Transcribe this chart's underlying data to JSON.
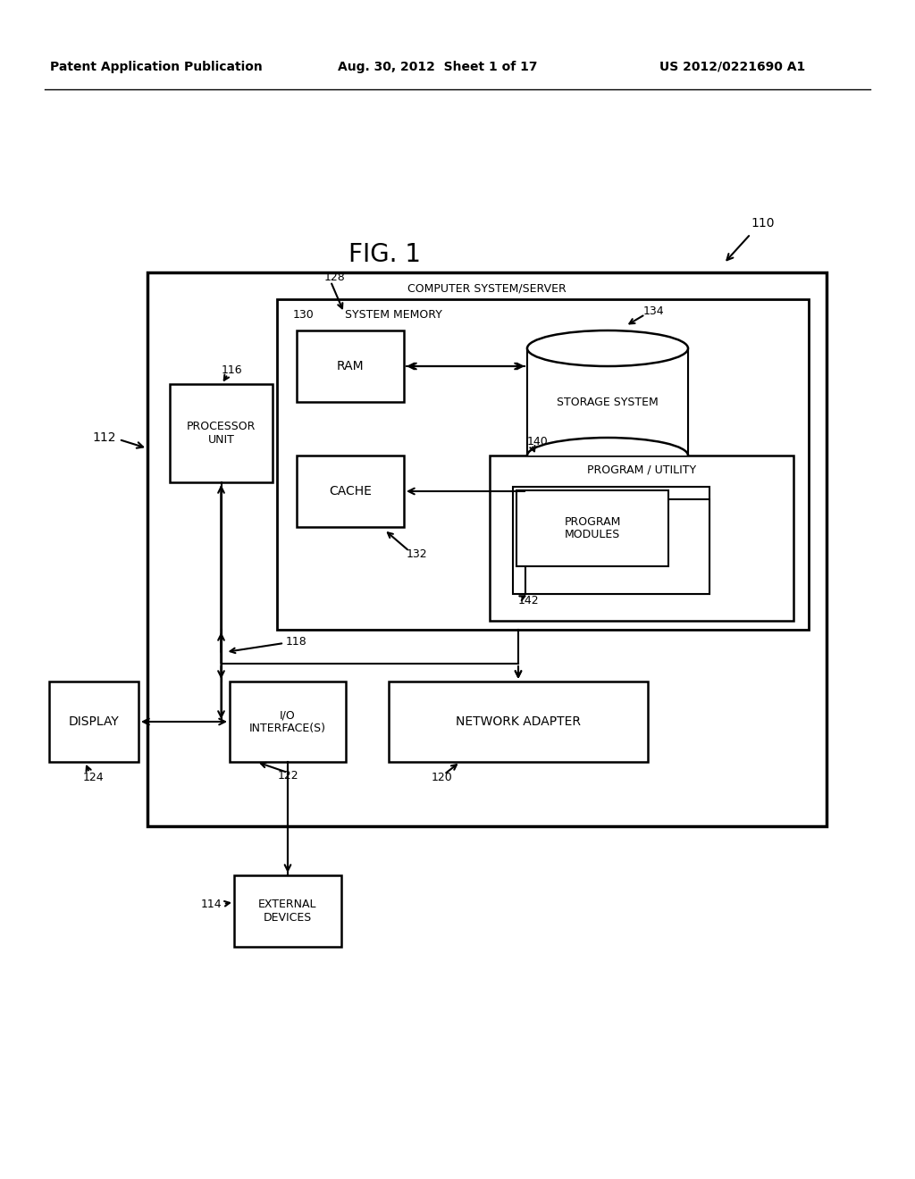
{
  "bg_color": "#ffffff",
  "header_left": "Patent Application Publication",
  "header_center": "Aug. 30, 2012  Sheet 1 of 17",
  "header_right": "US 2012/0221690 A1",
  "fig_title": "FIG. 1",
  "ref_110": "110",
  "ref_112": "112",
  "ref_114": "114",
  "ref_116": "116",
  "ref_118": "118",
  "ref_120": "120",
  "ref_122": "122",
  "ref_124": "124",
  "ref_128": "128",
  "ref_130": "130",
  "ref_132": "132",
  "ref_134": "134",
  "ref_140": "140",
  "ref_142": "142",
  "label_computer": "COMPUTER SYSTEM/SERVER",
  "label_system_memory": "SYSTEM MEMORY",
  "label_ram": "RAM",
  "label_cache": "CACHE",
  "label_storage": "STORAGE SYSTEM",
  "label_program_utility": "PROGRAM / UTILITY",
  "label_program_modules": "PROGRAM\nMODULES",
  "label_processor": "PROCESSOR\nUNIT",
  "label_io": "I/O\nINTERFACE(S)",
  "label_network": "NETWORK ADAPTER",
  "label_display": "DISPLAY",
  "label_external": "EXTERNAL\nDEVICES"
}
